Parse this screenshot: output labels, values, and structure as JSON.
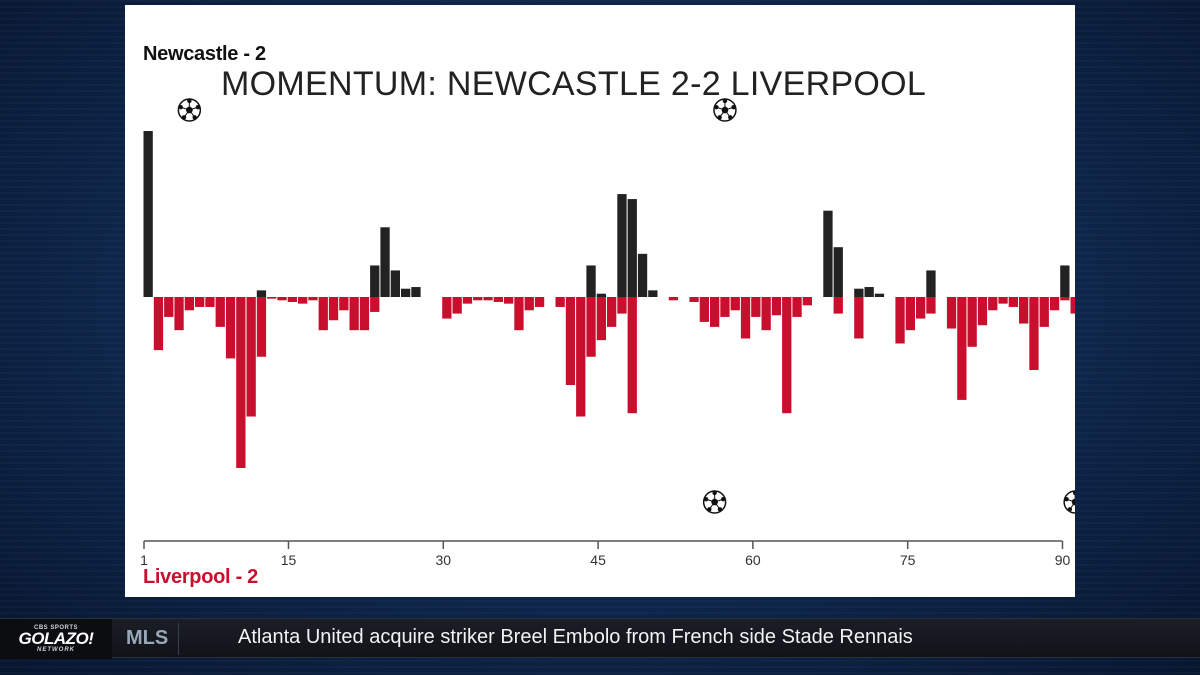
{
  "chart_data": {
    "type": "bar",
    "title": "MOMENTUM: NEWCASTLE 2-2 LIVERPOOL",
    "home_label": "Newcastle - 2",
    "away_label": "Liverpool - 2",
    "x_ticks": [
      1,
      15,
      30,
      45,
      60,
      75,
      90
    ],
    "xlim": [
      1,
      90
    ],
    "ylim": [
      -100,
      100
    ],
    "grid": false,
    "legend": "none",
    "colors": {
      "home": "#222222",
      "away": "#c8102e",
      "axis": "#555555"
    },
    "minutes": [
      1,
      2,
      3,
      4,
      5,
      6,
      7,
      8,
      9,
      10,
      11,
      12,
      13,
      14,
      15,
      16,
      17,
      18,
      19,
      20,
      21,
      22,
      23,
      24,
      25,
      26,
      27,
      28,
      29,
      30,
      31,
      32,
      33,
      34,
      35,
      36,
      37,
      38,
      39,
      40,
      41,
      42,
      43,
      44,
      45,
      46,
      47,
      48,
      49,
      50,
      51,
      52,
      53,
      54,
      55,
      56,
      57,
      58,
      59,
      60,
      61,
      62,
      63,
      64,
      65,
      66,
      67,
      68,
      69,
      70,
      71,
      72,
      73,
      74,
      75,
      76,
      77,
      78,
      79,
      80,
      81,
      82,
      83,
      84,
      85,
      86,
      87,
      88,
      89,
      90,
      91
    ],
    "series": [
      {
        "name": "Newcastle - 2",
        "values": [
          100,
          0,
          0,
          0,
          0,
          0,
          0,
          0,
          0,
          0,
          0,
          4,
          0,
          0,
          0,
          0,
          0,
          0,
          0,
          0,
          0,
          0,
          19,
          42,
          16,
          5,
          6,
          0,
          0,
          0,
          0,
          0,
          0,
          0,
          0,
          0,
          0,
          0,
          0,
          0,
          0,
          0,
          0,
          19,
          2,
          0,
          62,
          59,
          26,
          4,
          0,
          0,
          0,
          0,
          0,
          0,
          0,
          0,
          0,
          0,
          0,
          0,
          0,
          0,
          0,
          0,
          52,
          30,
          0,
          5,
          6,
          2,
          0,
          0,
          0,
          0,
          16,
          0,
          0,
          0,
          0,
          0,
          0,
          0,
          0,
          0,
          0,
          0,
          0,
          19,
          0
        ]
      },
      {
        "name": "Liverpool - 2",
        "values": [
          0,
          -32,
          -12,
          -20,
          -8,
          -6,
          -6,
          -18,
          -37,
          -103,
          -72,
          -36,
          -1,
          -2,
          -3,
          -4,
          -2,
          -20,
          -14,
          -8,
          -20,
          -20,
          -9,
          0,
          0,
          0,
          0,
          0,
          0,
          -13,
          -10,
          -4,
          -2,
          -2,
          -3,
          -4,
          -20,
          -8,
          -6,
          0,
          -6,
          -53,
          -72,
          -36,
          -26,
          -18,
          -10,
          -70,
          0,
          0,
          0,
          -2,
          0,
          -3,
          -15,
          -18,
          -12,
          -8,
          -25,
          -12,
          -20,
          -11,
          -70,
          -12,
          -5,
          0,
          0,
          -10,
          0,
          -25,
          0,
          0,
          0,
          -28,
          -20,
          -13,
          -10,
          0,
          -19,
          -62,
          -30,
          -17,
          -8,
          -4,
          -6,
          -16,
          -44,
          -18,
          -8,
          -2,
          -10
        ]
      }
    ],
    "goal_markers": [
      {
        "team": "home",
        "minute": 5,
        "icon": "soccer-ball-icon"
      },
      {
        "team": "home",
        "minute": 57,
        "icon": "soccer-ball-icon"
      },
      {
        "team": "away",
        "minute": 56,
        "icon": "soccer-ball-icon"
      },
      {
        "team": "away",
        "minute": 91,
        "icon": "soccer-ball-icon"
      }
    ]
  },
  "ticker": {
    "brand_top": "CBS SPORTS",
    "brand_main": "GOLAZO!",
    "brand_sub": "NETWORK",
    "category": "MLS",
    "headline": "Atlanta United acquire striker Breel Embolo from French side Stade Rennais"
  }
}
